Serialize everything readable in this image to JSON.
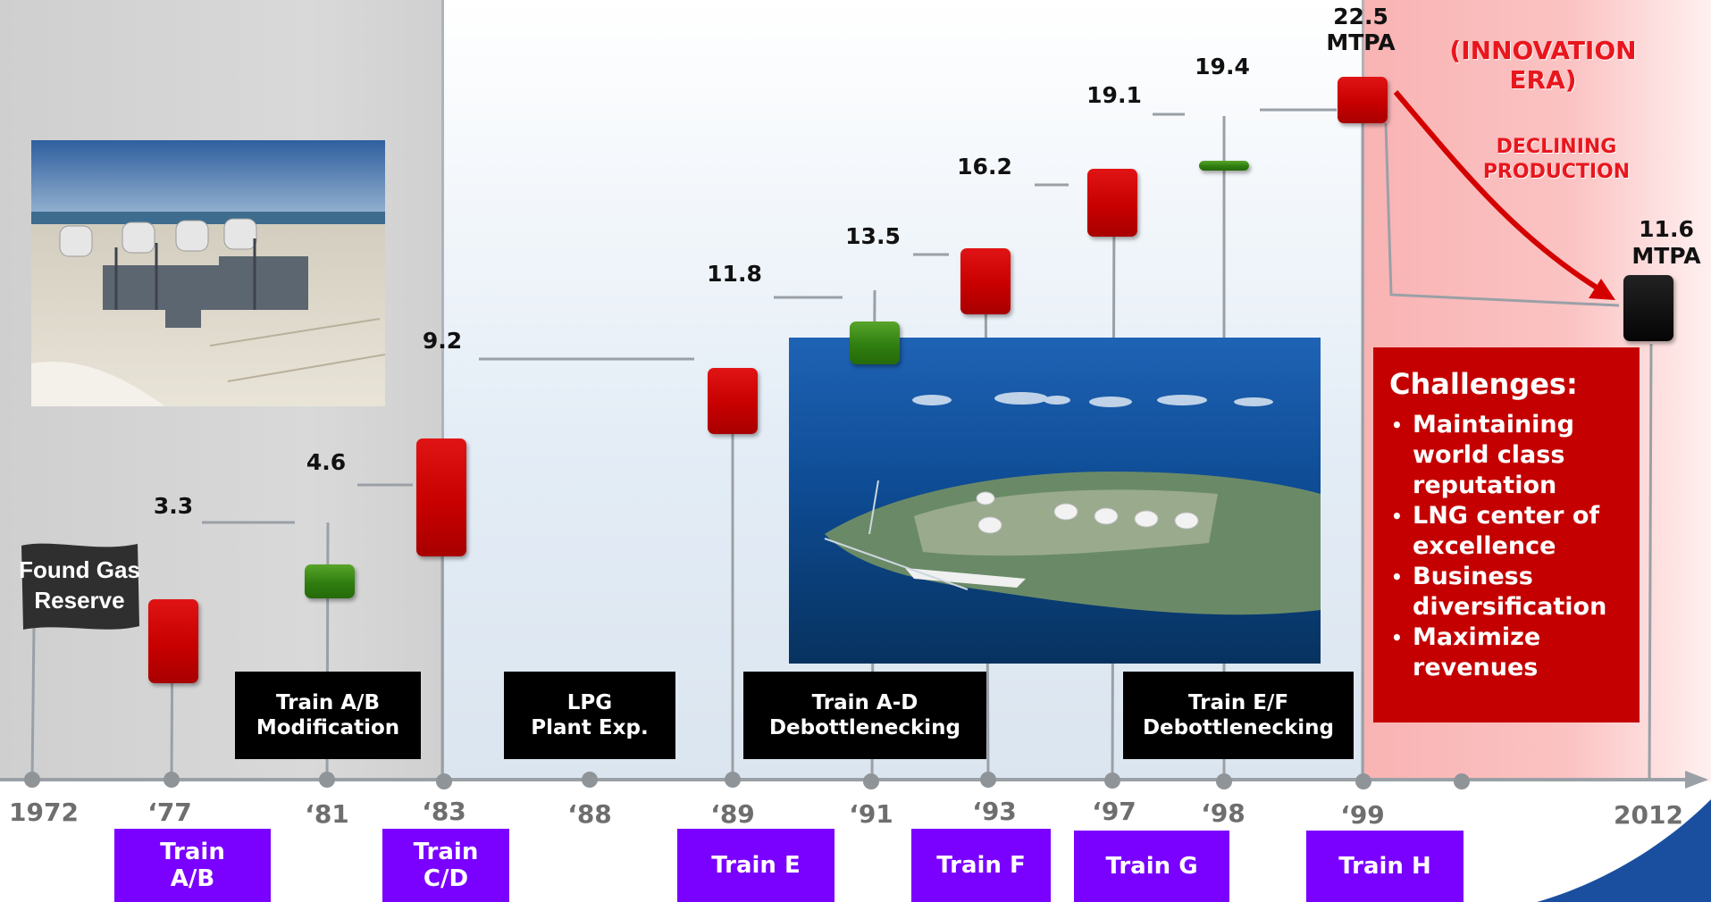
{
  "title": "",
  "colors": {
    "bar_red": "#c80000",
    "bar_green": "#2f7e10",
    "bar_black": "#050505",
    "train_label": "#7a00ff",
    "event_label": "#000000",
    "challenges_box": "#c40000",
    "era_text": "#e8161d",
    "timeline": "#9aa0a6"
  },
  "chart_data": {
    "type": "bar",
    "unit": "MTPA",
    "steps": [
      {
        "year": "'77",
        "value": 3.3,
        "label": "3.3",
        "kind": "train"
      },
      {
        "year": "'81",
        "value": 4.6,
        "label": "4.6",
        "kind": "modification"
      },
      {
        "year": "'83",
        "value": 9.2,
        "label": "9.2",
        "kind": "train"
      },
      {
        "year": "'89",
        "value": 11.8,
        "label": "11.8",
        "kind": "train"
      },
      {
        "year": "'91",
        "value": 13.5,
        "label": "13.5",
        "kind": "debottlenecking"
      },
      {
        "year": "'93",
        "value": 16.2,
        "label": "16.2",
        "kind": "train"
      },
      {
        "year": "'97",
        "value": 19.1,
        "label": "19.1",
        "kind": "train"
      },
      {
        "year": "'98",
        "value": 19.4,
        "label": "19.4",
        "kind": "debottlenecking"
      },
      {
        "year": "'99",
        "value": 22.5,
        "label": "22.5\nMTPA",
        "kind": "train"
      },
      {
        "year": "2012",
        "value": 11.6,
        "label": "11.6\nMTPA",
        "kind": "current"
      }
    ]
  },
  "timeline": {
    "years": [
      "1972",
      "‘77",
      "‘81",
      "‘83",
      "‘88",
      "‘89",
      "‘91",
      "‘93",
      "‘97",
      "‘98",
      "‘99",
      "2012"
    ]
  },
  "trains": [
    {
      "label": "Train\nA/B"
    },
    {
      "label": "Train\nC/D"
    },
    {
      "label": "Train E"
    },
    {
      "label": "Train F"
    },
    {
      "label": "Train G"
    },
    {
      "label": "Train H"
    }
  ],
  "events": [
    {
      "label": "Train A/B\nModification"
    },
    {
      "label": "LPG\nPlant Exp."
    },
    {
      "label": "Train A-D\nDebottlenecking"
    },
    {
      "label": "Train E/F\nDebottlenecking"
    }
  ],
  "flag": {
    "label": "Found Gas\nReserve"
  },
  "era": {
    "label": "(INNOVATION\nERA)"
  },
  "declining": {
    "label": "DECLINING\nPRODUCTION"
  },
  "challenges": {
    "title": "Challenges:",
    "items": [
      "Maintaining world class reputation",
      "LNG center of excellence",
      "Business diversification",
      "Maximize revenues"
    ]
  }
}
